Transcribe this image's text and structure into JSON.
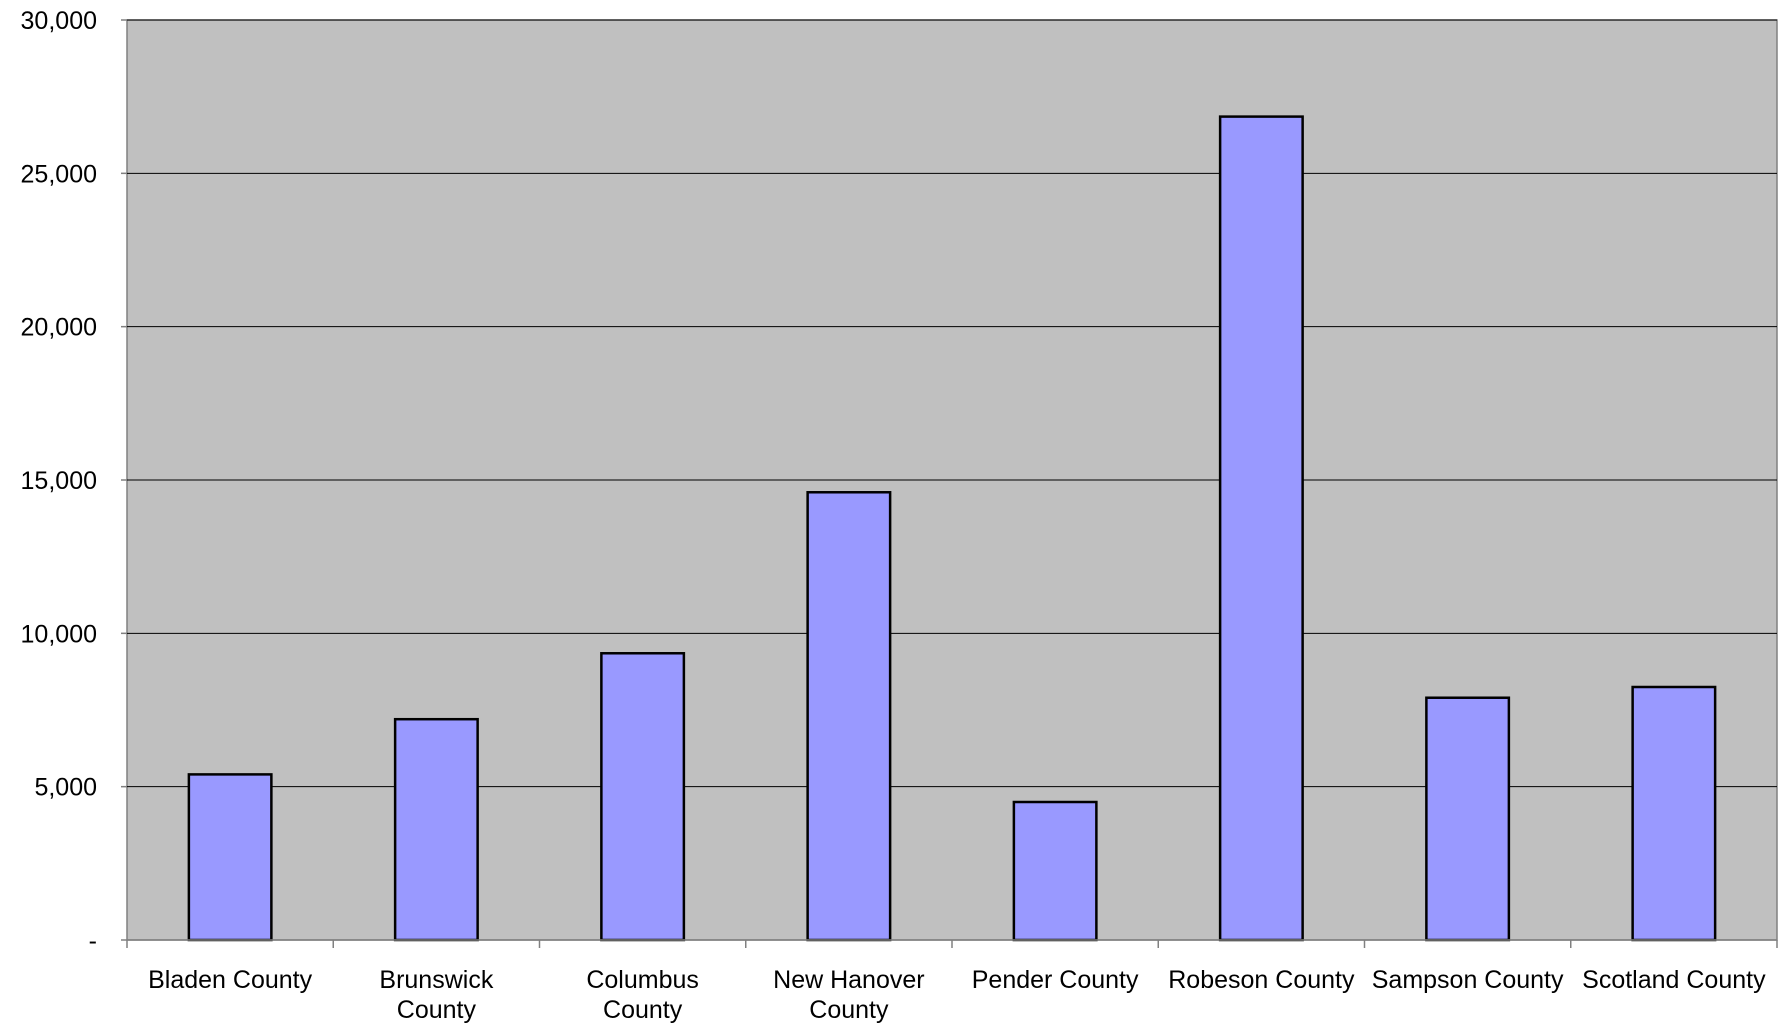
{
  "chart_data": {
    "type": "bar",
    "title": "",
    "xlabel": "",
    "ylabel": "",
    "categories": [
      [
        "Bladen County"
      ],
      [
        "Brunswick",
        "County"
      ],
      [
        "Columbus",
        "County"
      ],
      [
        "New Hanover",
        "County"
      ],
      [
        "Pender County"
      ],
      [
        "Robeson County"
      ],
      [
        "Sampson County"
      ],
      [
        "Scotland County"
      ]
    ],
    "values": [
      5400,
      7200,
      9350,
      14600,
      4500,
      26850,
      7900,
      8250
    ],
    "ylim": [
      0,
      30000
    ],
    "yticks": [
      0,
      5000,
      10000,
      15000,
      20000,
      25000,
      30000
    ],
    "ytick_labels": [
      "-",
      "5,000",
      "10,000",
      "15,000",
      "20,000",
      "25,000",
      "30,000"
    ],
    "grid": true,
    "legend": "none",
    "colors": {
      "plot_background": "#c0c0c0",
      "bar_fill": "#9999ff",
      "bar_edge": "#000000",
      "gridline": "#000000",
      "axis": "#808080"
    }
  }
}
